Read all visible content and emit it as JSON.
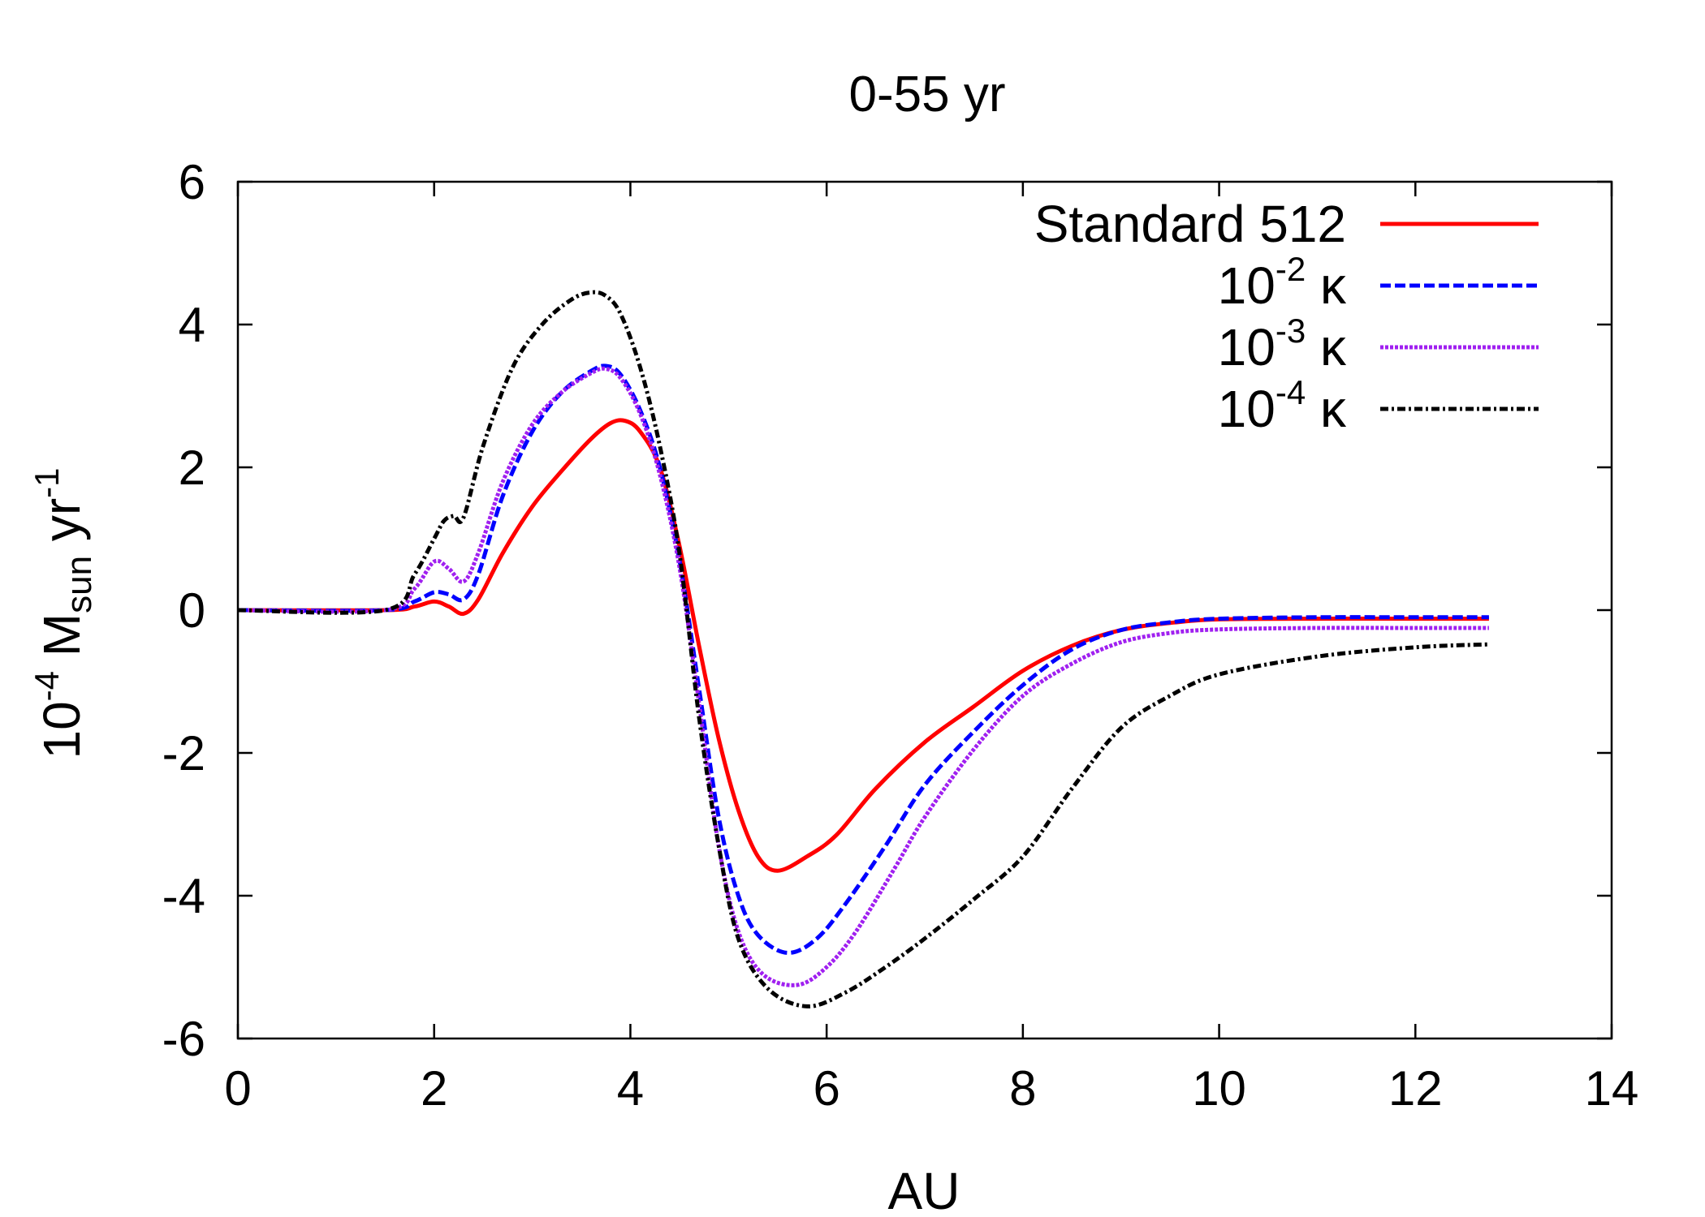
{
  "chart_data": {
    "type": "line",
    "title": "0-55 yr",
    "xlabel": "AU",
    "ylabel": {
      "base": "10",
      "exp": "-4",
      "symbol": "M",
      "sub": "sun",
      "unit": "yr",
      "unit_exp": "-1"
    },
    "xlim": [
      0,
      14
    ],
    "ylim": [
      -6,
      6
    ],
    "xticks": [
      "0",
      "2",
      "4",
      "6",
      "8",
      "10",
      "12",
      "14"
    ],
    "yticks": [
      "-6",
      "-4",
      "-2",
      "0",
      "2",
      "4",
      "6"
    ],
    "grid": false,
    "legend_position": "top-right",
    "series": [
      {
        "name": "Standard 512",
        "legend": {
          "text": "Standard 512",
          "exp": "",
          "suffix": ""
        },
        "color": "#ff0000",
        "dash": "",
        "x": [
          0,
          1.5,
          1.8,
          2.0,
          2.15,
          2.3,
          2.45,
          2.7,
          3.0,
          3.3,
          3.6,
          3.8,
          3.95,
          4.1,
          4.3,
          4.5,
          4.7,
          4.9,
          5.1,
          5.3,
          5.5,
          5.8,
          6.1,
          6.5,
          7.0,
          7.5,
          8.0,
          8.5,
          9.0,
          9.5,
          10.0,
          11.0,
          12.0,
          12.75
        ],
        "y": [
          0,
          0,
          0.05,
          0.12,
          0.05,
          -0.05,
          0.15,
          0.8,
          1.45,
          1.95,
          2.4,
          2.62,
          2.65,
          2.5,
          2.0,
          0.9,
          -0.5,
          -1.8,
          -2.8,
          -3.45,
          -3.65,
          -3.45,
          -3.15,
          -2.5,
          -1.85,
          -1.35,
          -0.85,
          -0.5,
          -0.28,
          -0.18,
          -0.13,
          -0.12,
          -0.12,
          -0.12
        ]
      },
      {
        "name": "10-2 κ",
        "legend": {
          "text": "10",
          "exp": "-2",
          "suffix": " κ"
        },
        "color": "#0000ff",
        "dash": "13 5",
        "x": [
          0,
          1.5,
          1.8,
          2.0,
          2.15,
          2.3,
          2.45,
          2.7,
          3.0,
          3.3,
          3.6,
          3.75,
          3.9,
          4.1,
          4.3,
          4.5,
          4.7,
          4.9,
          5.1,
          5.3,
          5.6,
          5.9,
          6.2,
          6.6,
          7.0,
          7.5,
          8.0,
          8.5,
          9.0,
          9.5,
          10.0,
          11.0,
          12.0,
          12.75
        ],
        "y": [
          0,
          0,
          0.12,
          0.25,
          0.22,
          0.15,
          0.5,
          1.6,
          2.5,
          3.05,
          3.35,
          3.42,
          3.3,
          2.8,
          2.0,
          0.7,
          -1.1,
          -2.9,
          -4.0,
          -4.55,
          -4.8,
          -4.6,
          -4.1,
          -3.3,
          -2.45,
          -1.7,
          -1.05,
          -0.55,
          -0.28,
          -0.17,
          -0.12,
          -0.1,
          -0.1,
          -0.1
        ]
      },
      {
        "name": "10-3 κ",
        "legend": {
          "text": "10",
          "exp": "-3",
          "suffix": " κ"
        },
        "color": "#a020f0",
        "dash": "4 2",
        "x": [
          0,
          1.5,
          1.8,
          2.0,
          2.15,
          2.3,
          2.45,
          2.7,
          3.0,
          3.3,
          3.6,
          3.75,
          3.9,
          4.1,
          4.3,
          4.5,
          4.7,
          4.9,
          5.1,
          5.35,
          5.7,
          6.0,
          6.3,
          6.7,
          7.0,
          7.5,
          8.0,
          8.5,
          9.0,
          9.5,
          10.0,
          11.0,
          12.0,
          12.75
        ],
        "y": [
          0,
          0,
          0.3,
          0.68,
          0.58,
          0.4,
          0.8,
          1.8,
          2.6,
          3.05,
          3.32,
          3.38,
          3.25,
          2.75,
          1.9,
          0.6,
          -1.3,
          -3.3,
          -4.5,
          -5.1,
          -5.25,
          -5.0,
          -4.5,
          -3.6,
          -2.9,
          -1.95,
          -1.2,
          -0.75,
          -0.45,
          -0.32,
          -0.27,
          -0.25,
          -0.25,
          -0.25
        ]
      },
      {
        "name": "10-4 κ",
        "legend": {
          "text": "10",
          "exp": "-4",
          "suffix": " κ"
        },
        "color": "#000000",
        "dash": "10 4 3 4",
        "x": [
          0,
          1.5,
          1.8,
          2.0,
          2.1,
          2.2,
          2.3,
          2.5,
          2.8,
          3.1,
          3.4,
          3.6,
          3.75,
          3.9,
          4.1,
          4.3,
          4.5,
          4.7,
          4.9,
          5.1,
          5.4,
          5.8,
          6.2,
          6.6,
          7.0,
          7.5,
          8.0,
          8.5,
          9.0,
          9.5,
          10.0,
          11.0,
          12.0,
          12.75
        ],
        "y": [
          0,
          0,
          0.5,
          1.0,
          1.25,
          1.32,
          1.3,
          2.3,
          3.4,
          4.0,
          4.35,
          4.45,
          4.4,
          4.15,
          3.4,
          2.3,
          0.8,
          -1.5,
          -3.3,
          -4.6,
          -5.3,
          -5.55,
          -5.35,
          -5.0,
          -4.6,
          -4.05,
          -3.45,
          -2.5,
          -1.65,
          -1.2,
          -0.9,
          -0.65,
          -0.52,
          -0.48
        ]
      }
    ]
  }
}
